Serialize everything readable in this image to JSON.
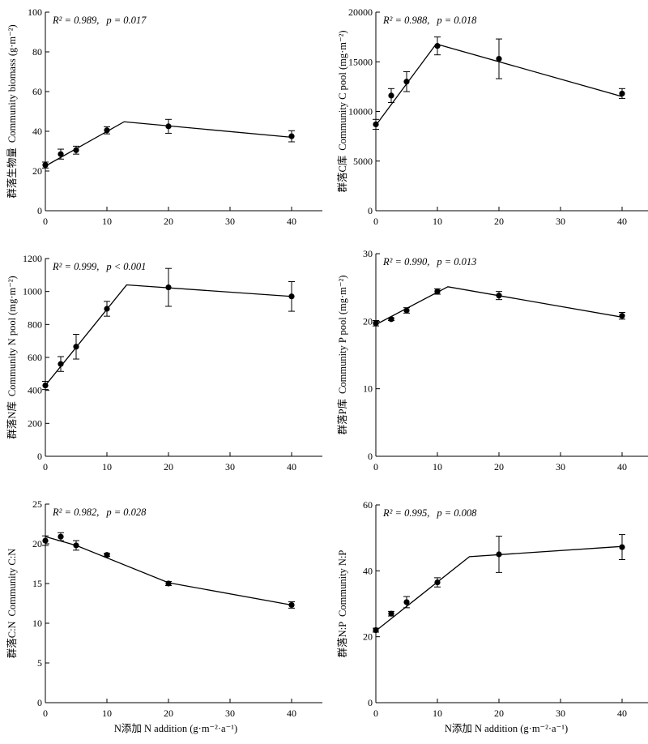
{
  "figure": {
    "x_axis_label": "N添加  N addition (g·m⁻²·a⁻¹)"
  },
  "chart_data": [
    {
      "type": "line",
      "ylabel_cn": "群落生物量",
      "ylabel_en": "Community biomass (g·m⁻²)",
      "stat_r2": "R² = 0.989,",
      "stat_p": "p = 0.017",
      "xlim": [
        0,
        45
      ],
      "ylim": [
        0,
        100
      ],
      "xticks": [
        0,
        10,
        20,
        30,
        40
      ],
      "yticks": [
        0,
        20,
        40,
        60,
        80,
        100
      ],
      "points": {
        "x": [
          0,
          2.5,
          5,
          10,
          20,
          40
        ],
        "y": [
          23,
          28.5,
          30.5,
          40.5,
          42.5,
          37.5
        ],
        "err": [
          1.5,
          2.5,
          2,
          1.8,
          3.5,
          2.8
        ]
      },
      "fit": {
        "x": [
          0,
          12.8,
          40
        ],
        "y": [
          22.5,
          44.8,
          37
        ]
      },
      "show_xlabel": false
    },
    {
      "type": "line",
      "ylabel_cn": "群落C库",
      "ylabel_en": "Community C pool (mg·m⁻²)",
      "stat_r2": "R² = 0.988,",
      "stat_p": "p = 0.018",
      "xlim": [
        0,
        45
      ],
      "ylim": [
        0,
        20000
      ],
      "xticks": [
        0,
        10,
        20,
        30,
        40
      ],
      "yticks": [
        0,
        5000,
        10000,
        15000,
        20000
      ],
      "points": {
        "x": [
          0,
          2.5,
          5,
          10,
          20,
          40
        ],
        "y": [
          8700,
          11600,
          13000,
          16600,
          15300,
          11800
        ],
        "err": [
          500,
          700,
          1000,
          900,
          2000,
          500
        ]
      },
      "fit": {
        "x": [
          0,
          9.8,
          40
        ],
        "y": [
          8600,
          16800,
          11500
        ]
      },
      "show_xlabel": false
    },
    {
      "type": "line",
      "ylabel_cn": "群落N库",
      "ylabel_en": "Community N pool (mg·m⁻²)",
      "stat_r2": "R² = 0.999,",
      "stat_p": "p < 0.001",
      "xlim": [
        0,
        45
      ],
      "ylim": [
        0,
        1200
      ],
      "xticks": [
        0,
        10,
        20,
        30,
        40
      ],
      "yticks": [
        0,
        200,
        400,
        600,
        800,
        1000,
        1200
      ],
      "points": {
        "x": [
          0,
          2.5,
          5,
          10,
          20,
          40
        ],
        "y": [
          430,
          560,
          665,
          895,
          1025,
          970
        ],
        "err": [
          25,
          45,
          75,
          45,
          115,
          90
        ]
      },
      "fit": {
        "x": [
          0,
          13.2,
          40
        ],
        "y": [
          430,
          1040,
          970
        ]
      },
      "show_xlabel": false
    },
    {
      "type": "line",
      "ylabel_cn": "群落P库",
      "ylabel_en": "Community P pool (mg·m⁻²)",
      "stat_r2": "R² = 0.990,",
      "stat_p": "p = 0.013",
      "xlim": [
        0,
        45
      ],
      "ylim": [
        0,
        30
      ],
      "xticks": [
        0,
        10,
        20,
        30,
        40
      ],
      "yticks": [
        0,
        10,
        20,
        30
      ],
      "points": {
        "x": [
          0,
          2.5,
          5,
          10,
          20,
          40
        ],
        "y": [
          19.7,
          20.3,
          21.6,
          24.4,
          23.8,
          20.8
        ],
        "err": [
          0.4,
          0.2,
          0.4,
          0.4,
          0.6,
          0.5
        ]
      },
      "fit": {
        "x": [
          0,
          11.7,
          40
        ],
        "y": [
          19.5,
          25.1,
          20.6
        ]
      },
      "show_xlabel": false
    },
    {
      "type": "line",
      "ylabel_cn": "群落C:N",
      "ylabel_en": "Community C:N",
      "stat_r2": "R² = 0.982,",
      "stat_p": "p = 0.028",
      "xlim": [
        0,
        45
      ],
      "ylim": [
        0,
        25
      ],
      "xticks": [
        0,
        10,
        20,
        30,
        40
      ],
      "yticks": [
        0,
        5,
        10,
        15,
        20,
        25
      ],
      "points": {
        "x": [
          0,
          2.5,
          5,
          10,
          20,
          40
        ],
        "y": [
          20.4,
          20.9,
          19.8,
          18.6,
          15,
          12.3
        ],
        "err": [
          0.6,
          0.5,
          0.6,
          0.2,
          0.25,
          0.4
        ]
      },
      "fit": {
        "x": [
          0,
          5,
          20,
          40
        ],
        "y": [
          20.9,
          19.8,
          15.1,
          12.3
        ]
      },
      "show_xlabel": true
    },
    {
      "type": "line",
      "ylabel_cn": "群落N:P",
      "ylabel_en": "Community N:P",
      "stat_r2": "R² = 0.995,",
      "stat_p": "p = 0.008",
      "xlim": [
        0,
        45
      ],
      "ylim": [
        0,
        60
      ],
      "xticks": [
        0,
        10,
        20,
        30,
        40
      ],
      "yticks": [
        0,
        20,
        40,
        60
      ],
      "points": {
        "x": [
          0,
          2.5,
          5,
          10,
          20,
          40
        ],
        "y": [
          22,
          27,
          30.5,
          36.5,
          45,
          47.2
        ],
        "err": [
          0.6,
          0.7,
          1.7,
          1.4,
          5.5,
          3.8
        ]
      },
      "fit": {
        "x": [
          0,
          15.2,
          40
        ],
        "y": [
          21.8,
          44.3,
          47.4
        ]
      },
      "show_xlabel": true
    }
  ]
}
